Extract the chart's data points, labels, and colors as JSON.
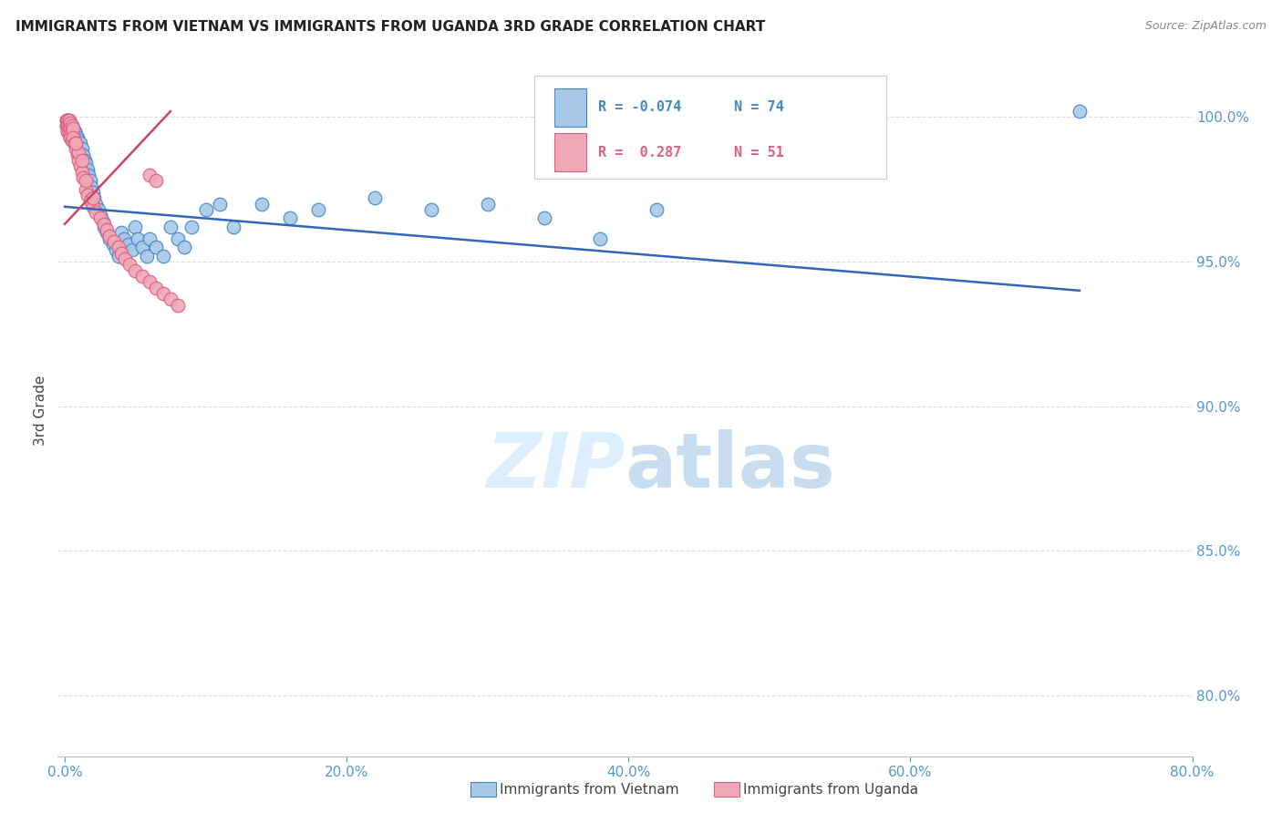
{
  "title": "IMMIGRANTS FROM VIETNAM VS IMMIGRANTS FROM UGANDA 3RD GRADE CORRELATION CHART",
  "source": "Source: ZipAtlas.com",
  "ylabel": "3rd Grade",
  "x_ticklabels": [
    "0.0%",
    "20.0%",
    "40.0%",
    "60.0%",
    "80.0%"
  ],
  "x_ticks": [
    0.0,
    0.2,
    0.4,
    0.6,
    0.8
  ],
  "y_ticklabels_right": [
    "100.0%",
    "95.0%",
    "90.0%",
    "85.0%",
    "80.0%"
  ],
  "y_ticks_right": [
    1.0,
    0.95,
    0.9,
    0.85,
    0.8
  ],
  "xlim": [
    -0.005,
    0.8
  ],
  "ylim": [
    0.779,
    1.018
  ],
  "legend_labels": [
    "Immigrants from Vietnam",
    "Immigrants from Uganda"
  ],
  "R_vietnam": -0.074,
  "N_vietnam": 74,
  "R_uganda": 0.287,
  "N_uganda": 51,
  "blue_fill": "#a8c8e8",
  "pink_fill": "#f0a8b8",
  "blue_edge": "#4488cc",
  "pink_edge": "#e06080",
  "line_blue": "#3366bb",
  "line_pink": "#cc4466",
  "bg": "#ffffff",
  "watermark_color": "#ddeeff",
  "axis_color": "#5599cc",
  "grid_color": "#dddddd",
  "title_color": "#222222",
  "source_color": "#888888",
  "ylabel_color": "#444444",
  "vietnam_x": [
    0.001,
    0.001,
    0.002,
    0.002,
    0.002,
    0.003,
    0.003,
    0.003,
    0.003,
    0.004,
    0.004,
    0.004,
    0.005,
    0.005,
    0.005,
    0.006,
    0.006,
    0.007,
    0.007,
    0.008,
    0.008,
    0.009,
    0.009,
    0.01,
    0.01,
    0.011,
    0.012,
    0.013,
    0.014,
    0.015,
    0.016,
    0.017,
    0.018,
    0.019,
    0.02,
    0.021,
    0.022,
    0.024,
    0.025,
    0.027,
    0.028,
    0.03,
    0.032,
    0.034,
    0.036,
    0.038,
    0.04,
    0.042,
    0.045,
    0.048,
    0.05,
    0.052,
    0.055,
    0.058,
    0.06,
    0.065,
    0.07,
    0.075,
    0.08,
    0.085,
    0.09,
    0.1,
    0.11,
    0.12,
    0.14,
    0.16,
    0.18,
    0.22,
    0.26,
    0.3,
    0.34,
    0.38,
    0.42,
    0.72
  ],
  "vietnam_y": [
    0.999,
    0.997,
    0.999,
    0.997,
    0.995,
    0.999,
    0.998,
    0.996,
    0.994,
    0.998,
    0.996,
    0.993,
    0.997,
    0.995,
    0.992,
    0.996,
    0.993,
    0.995,
    0.991,
    0.994,
    0.99,
    0.993,
    0.989,
    0.992,
    0.988,
    0.991,
    0.989,
    0.987,
    0.985,
    0.984,
    0.982,
    0.98,
    0.978,
    0.976,
    0.974,
    0.972,
    0.97,
    0.968,
    0.966,
    0.964,
    0.962,
    0.96,
    0.958,
    0.956,
    0.954,
    0.952,
    0.96,
    0.958,
    0.956,
    0.954,
    0.962,
    0.958,
    0.955,
    0.952,
    0.958,
    0.955,
    0.952,
    0.962,
    0.958,
    0.955,
    0.962,
    0.968,
    0.97,
    0.962,
    0.97,
    0.965,
    0.968,
    0.972,
    0.968,
    0.97,
    0.965,
    0.958,
    0.968,
    1.002
  ],
  "uganda_x": [
    0.001,
    0.001,
    0.002,
    0.002,
    0.002,
    0.003,
    0.003,
    0.003,
    0.004,
    0.004,
    0.004,
    0.005,
    0.005,
    0.005,
    0.006,
    0.006,
    0.007,
    0.008,
    0.009,
    0.01,
    0.011,
    0.012,
    0.013,
    0.015,
    0.016,
    0.018,
    0.02,
    0.022,
    0.025,
    0.028,
    0.03,
    0.032,
    0.035,
    0.038,
    0.04,
    0.043,
    0.046,
    0.05,
    0.055,
    0.06,
    0.065,
    0.07,
    0.075,
    0.08,
    0.06,
    0.065,
    0.01,
    0.012,
    0.008,
    0.015,
    0.02
  ],
  "uganda_y": [
    0.999,
    0.997,
    0.999,
    0.997,
    0.995,
    0.999,
    0.997,
    0.995,
    0.998,
    0.996,
    0.993,
    0.997,
    0.995,
    0.992,
    0.996,
    0.993,
    0.991,
    0.989,
    0.987,
    0.985,
    0.983,
    0.981,
    0.979,
    0.975,
    0.973,
    0.971,
    0.969,
    0.967,
    0.965,
    0.963,
    0.961,
    0.959,
    0.957,
    0.955,
    0.953,
    0.951,
    0.949,
    0.947,
    0.945,
    0.943,
    0.941,
    0.939,
    0.937,
    0.935,
    0.98,
    0.978,
    0.988,
    0.985,
    0.991,
    0.978,
    0.972
  ],
  "vn_line_x": [
    0.0,
    0.72
  ],
  "vn_line_y": [
    0.969,
    0.94
  ],
  "ug_line_x": [
    0.0,
    0.075
  ],
  "ug_line_y": [
    0.963,
    1.002
  ]
}
